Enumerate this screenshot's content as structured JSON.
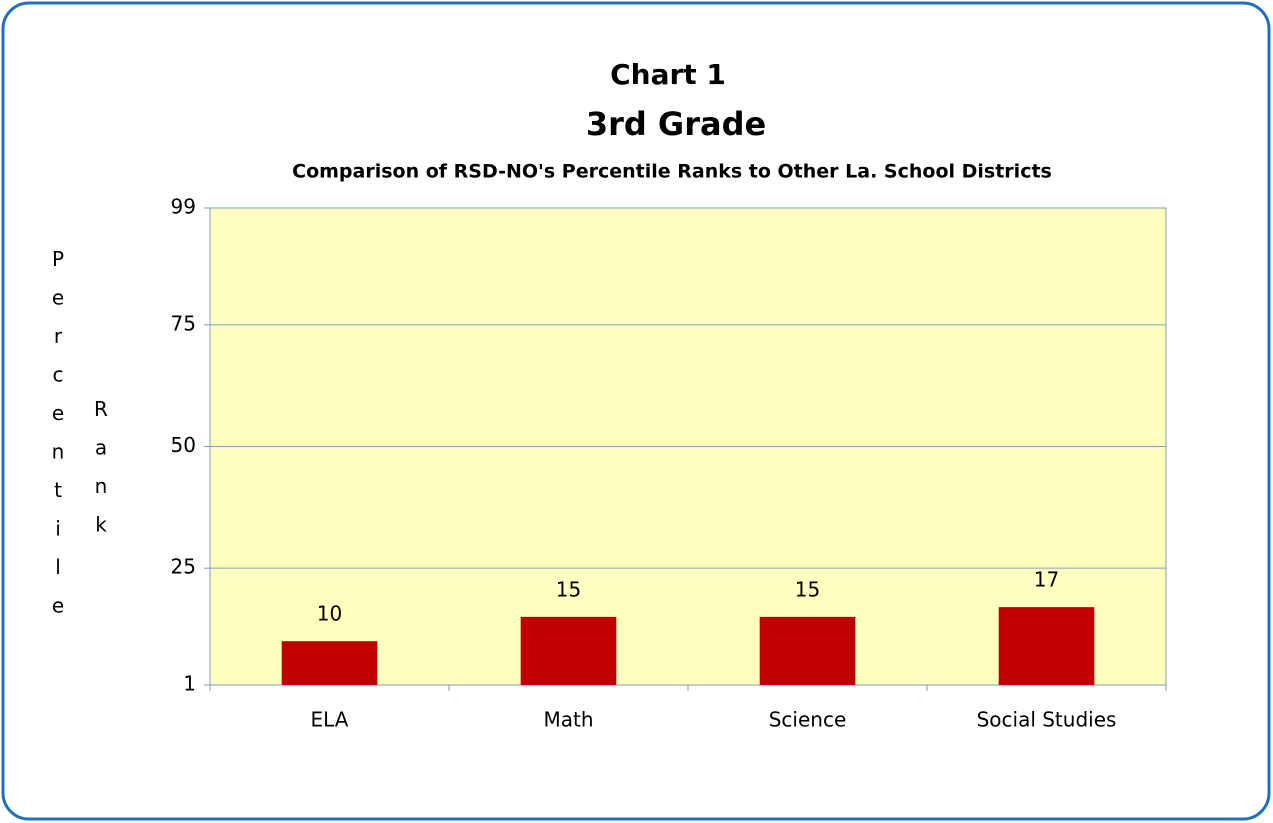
{
  "chart_data": {
    "type": "bar",
    "title": "Chart 1",
    "subtitle": "3rd Grade",
    "caption": "Comparison of RSD-NO's Percentile Ranks to Other La. School Districts",
    "ylabel": "Percentile Rank",
    "categories": [
      "ELA",
      "Math",
      "Science",
      "Social Studies"
    ],
    "values": [
      10,
      15,
      15,
      17
    ],
    "color": "#c00000",
    "ylim": [
      1,
      99
    ],
    "yticks": [
      1,
      25,
      50,
      75,
      99
    ],
    "grid": true
  }
}
